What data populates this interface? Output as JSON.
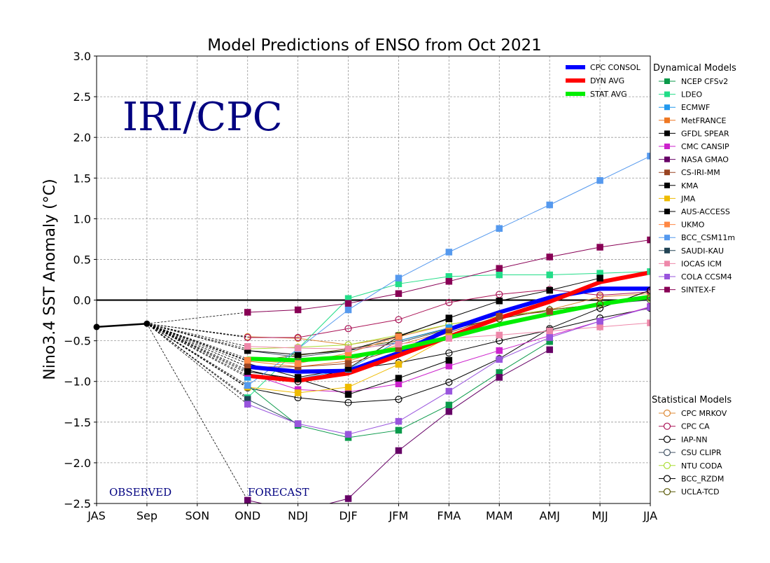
{
  "chart_data": {
    "type": "line",
    "title": "Model Predictions of ENSO from Oct 2021",
    "ylabel": "Nino3.4 SST Anomaly (°C)",
    "xlabel": "",
    "categories": [
      "JAS",
      "Sep",
      "SON",
      "OND",
      "NDJ",
      "DJF",
      "JFM",
      "FMA",
      "MAM",
      "AMJ",
      "MJJ",
      "JJA"
    ],
    "ylim": [
      -2.5,
      3.0
    ],
    "yticks": [
      "−2.5",
      "−2.0",
      "−1.5",
      "−1.0",
      "−0.5",
      "0.0",
      "0.5",
      "1.0",
      "1.5",
      "2.0",
      "2.5",
      "3.0"
    ],
    "grid": true,
    "watermark": "IRI/CPC",
    "observed_label": "OBSERVED",
    "forecast_label": "FORECAST",
    "observed": {
      "values": [
        -0.33,
        -0.29
      ],
      "color": "#000000"
    },
    "dynamical_title": "Dynamical Models",
    "statistical_title": "Statistical Models",
    "averages": [
      {
        "name": "CPC CONSOL",
        "color": "#0000ff",
        "values": [
          -0.82,
          -0.88,
          -0.87,
          -0.65,
          -0.36,
          -0.15,
          0.03,
          0.14,
          0.14
        ]
      },
      {
        "name": "DYN AVG",
        "color": "#ff0000",
        "values": [
          -0.93,
          -0.99,
          -0.9,
          -0.68,
          -0.45,
          -0.22,
          -0.02,
          0.22,
          0.34
        ]
      },
      {
        "name": "STAT AVG",
        "color": "#00ee00",
        "values": [
          -0.72,
          -0.74,
          -0.7,
          -0.6,
          -0.46,
          -0.3,
          -0.17,
          -0.05,
          0.04
        ]
      }
    ],
    "dynamical": [
      {
        "name": "NCEP CFSv2",
        "color": "#0a9a4a",
        "values": [
          -1.05,
          -1.54,
          -1.69,
          -1.6,
          -1.29,
          -0.89,
          -0.51,
          null,
          null
        ]
      },
      {
        "name": "LDEO",
        "color": "#22dd88",
        "values": [
          -1.2,
          -0.6,
          0.02,
          0.2,
          0.29,
          0.31,
          0.31,
          0.33,
          0.35
        ]
      },
      {
        "name": "ECMWF",
        "color": "#2299ee",
        "values": [
          -0.95,
          -0.97,
          -0.85,
          -0.5,
          -0.34,
          null,
          null,
          null,
          null
        ]
      },
      {
        "name": "MetFRANCE",
        "color": "#ee7722",
        "values": [
          -0.75,
          -0.82,
          -0.75,
          -0.55,
          -0.38,
          null,
          null,
          null,
          null
        ]
      },
      {
        "name": "GFDL SPEAR",
        "color": "#000000",
        "values": [
          -0.78,
          -0.95,
          -0.84,
          -0.45,
          -0.22,
          -0.01,
          0.12,
          0.27,
          null
        ]
      },
      {
        "name": "CMC CANSIP",
        "color": "#cc22cc",
        "values": [
          -0.9,
          -1.1,
          -1.13,
          -1.03,
          -0.81,
          -0.62,
          -0.44,
          -0.26,
          -0.08
        ]
      },
      {
        "name": "NASA GMAO",
        "color": "#660066",
        "values": [
          -2.46,
          -2.6,
          -2.44,
          -1.85,
          -1.37,
          -0.95,
          -0.61,
          null,
          null
        ]
      },
      {
        "name": "CS-IRI-MM",
        "color": "#994422",
        "values": [
          -0.82,
          -0.82,
          -0.78,
          -0.6,
          -0.4,
          -0.2,
          -0.14,
          null,
          null
        ]
      },
      {
        "name": "KMA",
        "color": "#000000",
        "values": [
          -0.88,
          -0.97,
          -1.16,
          -0.96,
          -0.74,
          null,
          null,
          null,
          null
        ]
      },
      {
        "name": "JMA",
        "color": "#eebb00",
        "values": [
          -1.07,
          -1.14,
          -1.07,
          -0.79,
          -0.45,
          null,
          null,
          null,
          null
        ]
      },
      {
        "name": "AUS-ACCESS",
        "color": "#000000",
        "values": [
          -0.62,
          -0.67,
          -0.62,
          -0.44,
          -0.23,
          null,
          null,
          null,
          null
        ]
      },
      {
        "name": "UKMO",
        "color": "#ff8844",
        "values": [
          -0.74,
          -0.78,
          -0.65,
          -0.45,
          null,
          null,
          null,
          null,
          null
        ]
      },
      {
        "name": "BCC_CSM11m",
        "color": "#5599ee",
        "values": [
          -1.05,
          -0.6,
          -0.12,
          0.27,
          0.59,
          0.88,
          1.17,
          1.47,
          1.77
        ]
      },
      {
        "name": "SAUDI-KAU",
        "color": "#224455",
        "values": [
          -1.22,
          -1.52,
          null,
          null,
          null,
          null,
          null,
          null,
          null
        ]
      },
      {
        "name": "IOCAS ICM",
        "color": "#ee88aa",
        "values": [
          -0.57,
          -0.59,
          -0.6,
          -0.54,
          -0.47,
          -0.43,
          -0.38,
          -0.33,
          -0.28
        ]
      },
      {
        "name": "COLA CCSM4",
        "color": "#9955dd",
        "values": [
          -1.28,
          -1.52,
          -1.65,
          -1.49,
          -1.12,
          -0.73,
          -0.46,
          -0.26,
          -0.09
        ]
      },
      {
        "name": "SINTEX-F",
        "color": "#880055",
        "values": [
          -0.15,
          -0.12,
          -0.04,
          0.08,
          0.23,
          0.39,
          0.53,
          0.65,
          0.74
        ]
      }
    ],
    "statistical": [
      {
        "name": "CPC MRKOV",
        "color": "#dd8833",
        "values": [
          -0.45,
          -0.47,
          -0.55,
          -0.45,
          -0.3,
          -0.2,
          -0.12,
          0.04,
          0.08
        ]
      },
      {
        "name": "CPC CA",
        "color": "#aa1155",
        "values": [
          -0.46,
          -0.46,
          -0.35,
          -0.24,
          -0.03,
          0.07,
          0.13,
          0.06,
          0.1
        ]
      },
      {
        "name": "IAP-NN",
        "color": "#000000",
        "values": [
          -1.08,
          -1.2,
          -1.26,
          -1.22,
          -1.01,
          -0.72,
          -0.35,
          -0.1,
          0.12
        ]
      },
      {
        "name": "CSU CLIPR",
        "color": "#445566",
        "values": [
          -0.62,
          -0.7,
          -0.62,
          -0.52,
          -0.36,
          -0.23,
          -0.12,
          -0.05,
          0.0
        ]
      },
      {
        "name": "NTU CODA",
        "color": "#aadd33",
        "values": [
          -0.6,
          -0.58,
          -0.55,
          -0.43,
          -0.3,
          -0.2,
          -0.12,
          -0.05,
          0.02
        ]
      },
      {
        "name": "BCC_RZDM",
        "color": "#000000",
        "values": [
          -0.86,
          -1.0,
          -0.85,
          -0.77,
          -0.65,
          -0.5,
          -0.37,
          -0.22,
          -0.1
        ]
      },
      {
        "name": "UCLA-TCD",
        "color": "#555500",
        "values": [
          -0.75,
          -0.68,
          -0.6,
          -0.5,
          -0.35,
          -0.23,
          -0.12,
          -0.05,
          0.03
        ]
      }
    ]
  }
}
